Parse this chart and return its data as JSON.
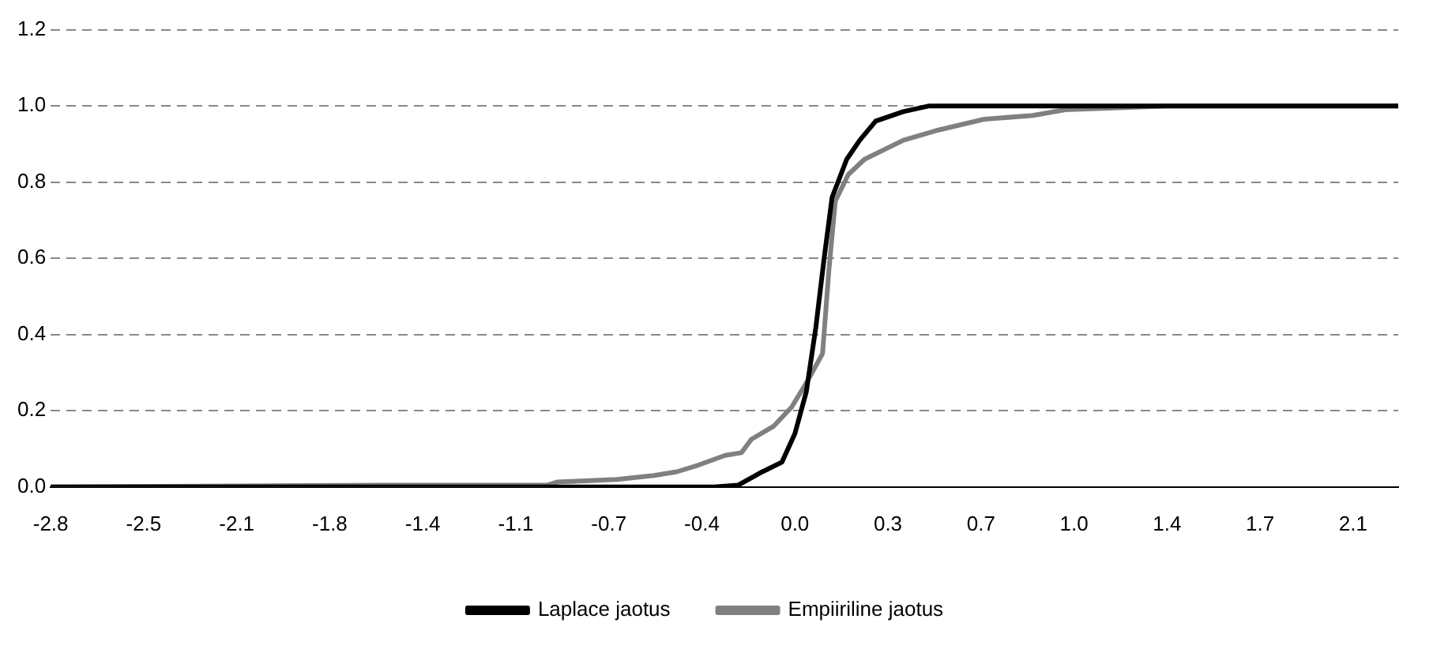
{
  "chart_data": {
    "type": "line",
    "xlim": [
      -2.8,
      2.27
    ],
    "xticks": [
      -2.8,
      {
        "value": -2.45,
        "label": "-2.5"
      },
      -2.1,
      {
        "value": -1.75,
        "label": "-1.8"
      },
      -1.4,
      {
        "value": -1.05,
        "label": "-1.1"
      },
      -0.7,
      {
        "value": -0.35,
        "label": "-0.4"
      },
      {
        "value": 0,
        "label": "0.0"
      },
      {
        "value": 0.35,
        "label": "0.3"
      },
      0.7,
      {
        "value": 1.05,
        "label": "1.0"
      },
      1.4,
      {
        "value": 1.75,
        "label": "1.7"
      },
      2.1
    ],
    "ylim": [
      0,
      1.2
    ],
    "yticks": [
      {
        "value": 0,
        "label": "0.0"
      },
      0.2,
      0.4,
      0.6,
      0.8,
      {
        "value": 1,
        "label": "1.0"
      },
      1.2
    ],
    "grid": "y",
    "legend": "bottom",
    "marker": "none",
    "line_style": "solid",
    "series": [
      {
        "name": "Laplace jaotus",
        "color": "#000000",
        "x": [
          -2.8,
          -0.304,
          -0.213,
          -0.122,
          -0.049,
          0.0,
          0.043,
          0.079,
          0.11,
          0.14,
          0.195,
          0.244,
          0.304,
          0.408,
          0.505,
          2.27
        ],
        "values": [
          0,
          0,
          0.005,
          0.04,
          0.065,
          0.14,
          0.25,
          0.42,
          0.6,
          0.76,
          0.86,
          0.91,
          0.96,
          0.985,
          1,
          1
        ]
      },
      {
        "name": "Empiiriline jaotus",
        "color": "#808080",
        "x": [
          -2.8,
          -1.564,
          -0.931,
          -0.895,
          -0.67,
          -0.53,
          -0.444,
          -0.365,
          -0.262,
          -0.201,
          -0.164,
          -0.079,
          -0.012,
          0.049,
          0.104,
          0.128,
          0.152,
          0.201,
          0.262,
          0.408,
          0.53,
          0.712,
          0.895,
          1.017,
          1.4,
          2.27
        ],
        "values": [
          0,
          0.005,
          0.005,
          0.013,
          0.02,
          0.03,
          0.04,
          0.057,
          0.083,
          0.09,
          0.125,
          0.16,
          0.21,
          0.28,
          0.35,
          0.57,
          0.75,
          0.82,
          0.86,
          0.91,
          0.935,
          0.965,
          0.975,
          0.99,
          1,
          1
        ]
      }
    ]
  }
}
